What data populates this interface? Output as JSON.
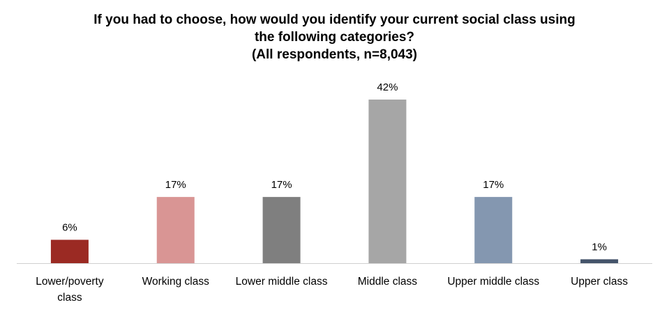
{
  "chart_data": {
    "type": "bar",
    "title_lines": [
      "If you had to choose, how would you identify your current social class using",
      "the following categories?",
      "(All respondents, n=8,043)"
    ],
    "categories": [
      [
        "Lower/poverty",
        "class"
      ],
      [
        "Working class"
      ],
      [
        "Lower middle class"
      ],
      [
        "Middle class"
      ],
      [
        "Upper middle class"
      ],
      [
        "Upper class"
      ]
    ],
    "values": [
      6,
      17,
      17,
      42,
      17,
      1
    ],
    "data_labels": [
      "6%",
      "17%",
      "17%",
      "42%",
      "17%",
      "1%"
    ],
    "colors": [
      "#9b2a23",
      "#d99594",
      "#7f7f7f",
      "#a6a6a6",
      "#8497b0",
      "#44546a"
    ],
    "ylim": [
      0,
      42
    ],
    "grid": false,
    "legend": "none"
  }
}
